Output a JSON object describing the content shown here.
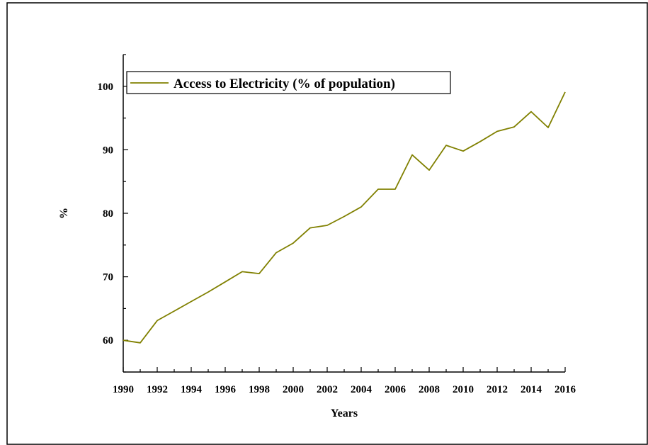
{
  "chart_data": {
    "type": "line",
    "title": "",
    "xlabel": "Years",
    "ylabel": "%",
    "xlim": [
      1990,
      2016
    ],
    "ylim": [
      55,
      105
    ],
    "xticks": [
      1990,
      1992,
      1994,
      1996,
      1998,
      2000,
      2002,
      2004,
      2006,
      2008,
      2010,
      2012,
      2014,
      2016
    ],
    "yticks": [
      60,
      70,
      80,
      90,
      100
    ],
    "grid": false,
    "legend": "top-left",
    "series": [
      {
        "name": "Access to Electricity (% of population)",
        "color": "#808000",
        "x": [
          1990,
          1991,
          1992,
          1993,
          1994,
          1995,
          1996,
          1997,
          1998,
          1999,
          2000,
          2001,
          2002,
          2003,
          2004,
          2005,
          2006,
          2007,
          2008,
          2009,
          2010,
          2011,
          2012,
          2013,
          2014,
          2015,
          2016
        ],
        "y": [
          60.0,
          59.6,
          63.1,
          64.6,
          66.1,
          67.6,
          69.2,
          70.8,
          70.5,
          73.8,
          75.3,
          77.7,
          78.1,
          79.5,
          81.0,
          83.8,
          83.8,
          89.2,
          86.8,
          90.7,
          89.8,
          91.3,
          92.9,
          93.6,
          96.0,
          93.5,
          99.1
        ]
      }
    ]
  }
}
